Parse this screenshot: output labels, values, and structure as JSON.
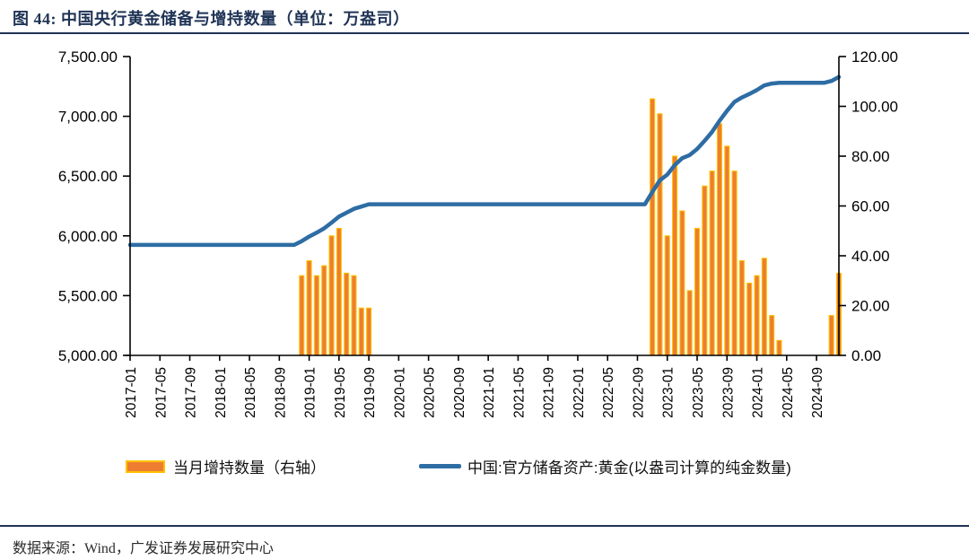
{
  "header": {
    "title": "图 44:  中国央行黄金储备与增持数量（单位：万盎司）"
  },
  "legend": {
    "bars_label": "当月增持数量（右轴）",
    "line_label": "中国:官方储备资产:黄金(以盎司计算的纯金数量)"
  },
  "footer": {
    "source": "数据来源：Wind，广发证券发展研究中心"
  },
  "colors": {
    "bar_fill": "#ED7D31",
    "bar_border": "#FFC000",
    "line_blue": "#2E6DA4",
    "rule_navy": "#1F3355",
    "axis_black": "#000000"
  },
  "chart_data": {
    "type": "bar",
    "subtype": "bar+line dual-axis",
    "title": "中国央行黄金储备与增持数量（单位：万盎司）",
    "x_start": "2017-01",
    "x_freq": "monthly",
    "n_points": 96,
    "x_tick_every": 4,
    "x_tick_labels": [
      "2017-01",
      "2017-05",
      "2017-09",
      "2018-01",
      "2018-05",
      "2018-09",
      "2019-01",
      "2019-05",
      "2019-09",
      "2020-01",
      "2020-05",
      "2020-09",
      "2021-01",
      "2021-05",
      "2021-09",
      "2022-01",
      "2022-05",
      "2022-09",
      "2023-01",
      "2023-05",
      "2023-09",
      "2024-01",
      "2024-05",
      "2024-09"
    ],
    "left_axis": {
      "min": 5000,
      "max": 7500,
      "step": 500,
      "tick_labels": [
        "7,500.00",
        "7,000.00",
        "6,500.00",
        "6,000.00",
        "5,500.00",
        "5,000.00"
      ]
    },
    "right_axis": {
      "min": 0,
      "max": 120,
      "step": 20,
      "tick_labels": [
        "120.00",
        "100.00",
        "80.00",
        "60.00",
        "40.00",
        "20.00",
        "0.00"
      ]
    },
    "grid": false,
    "legend_position": "bottom",
    "series": [
      {
        "name": "当月增持数量（右轴）",
        "type": "bar",
        "axis": "right",
        "values": [
          0,
          0,
          0,
          0,
          0,
          0,
          0,
          0,
          0,
          0,
          0,
          0,
          0,
          0,
          0,
          0,
          0,
          0,
          0,
          0,
          0,
          0,
          0,
          32,
          38,
          32,
          36,
          48,
          51,
          33,
          32,
          19,
          19,
          0,
          0,
          0,
          0,
          0,
          0,
          0,
          0,
          0,
          0,
          0,
          0,
          0,
          0,
          0,
          0,
          0,
          0,
          0,
          0,
          0,
          0,
          0,
          0,
          0,
          0,
          0,
          0,
          0,
          0,
          0,
          0,
          0,
          0,
          0,
          0,
          0,
          103,
          97,
          48,
          80,
          58,
          26,
          51,
          68,
          74,
          93,
          84,
          74,
          38,
          29,
          32,
          39,
          16,
          6,
          0,
          0,
          0,
          0,
          0,
          0,
          16,
          33
        ]
      },
      {
        "name": "中国:官方储备资产:黄金(以盎司计算的纯金数量)",
        "type": "line",
        "axis": "left",
        "values": [
          5924,
          5924,
          5924,
          5924,
          5924,
          5924,
          5924,
          5924,
          5924,
          5924,
          5924,
          5924,
          5924,
          5924,
          5924,
          5924,
          5924,
          5924,
          5924,
          5924,
          5924,
          5924,
          5924,
          5956,
          5994,
          6026,
          6062,
          6110,
          6161,
          6194,
          6226,
          6245,
          6264,
          6264,
          6264,
          6264,
          6264,
          6264,
          6264,
          6264,
          6264,
          6264,
          6264,
          6264,
          6264,
          6264,
          6264,
          6264,
          6264,
          6264,
          6264,
          6264,
          6264,
          6264,
          6264,
          6264,
          6264,
          6264,
          6264,
          6264,
          6264,
          6264,
          6264,
          6264,
          6264,
          6264,
          6264,
          6264,
          6264,
          6264,
          6367,
          6464,
          6512,
          6592,
          6650,
          6676,
          6727,
          6795,
          6869,
          6962,
          7046,
          7120,
          7158,
          7187,
          7219,
          7258,
          7274,
          7280,
          7280,
          7280,
          7280,
          7280,
          7280,
          7280,
          7296,
          7329
        ]
      }
    ]
  }
}
